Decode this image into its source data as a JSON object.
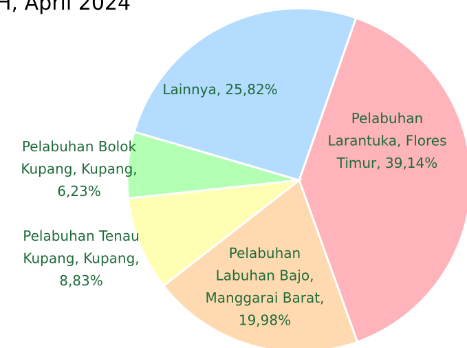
{
  "chart_data": {
    "type": "pie",
    "title": "H, April 2024",
    "labels": [
      [
        "Pelabuhan",
        "Larantuka, Flores",
        "Timur, 39,14%"
      ],
      [
        "Pelabuhan",
        "Labuhan Bajo,",
        "Manggarai Barat,",
        "19,98%"
      ],
      [
        "Pelabuhan Tenau",
        "Kupang, Kupang,",
        "8,83%"
      ],
      [
        "Pelabuhan Bolok",
        "Kupang, Kupang,",
        "6,23%"
      ],
      [
        "Lainnya, 25,82%"
      ]
    ],
    "values": [
      39.14,
      19.98,
      8.83,
      6.23,
      25.82
    ],
    "colors": [
      "#ffb3ba",
      "#ffdab0",
      "#ffffb3",
      "#b3ffb3",
      "#b3dcff"
    ]
  }
}
